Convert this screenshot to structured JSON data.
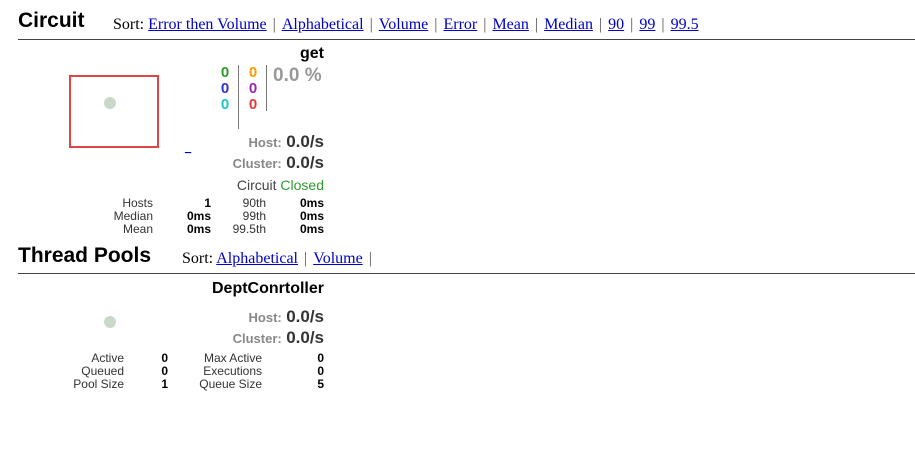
{
  "colors": {
    "link": "#0000cc",
    "success": "#2e9a2e",
    "timeout": "#ff9900",
    "rejected": "#9c27b0",
    "failure": "#e53935",
    "short_circuited": "#3333cc",
    "bad_request": "#1ac9c9",
    "highlight_border": "#e04545"
  },
  "circuit": {
    "title": "Circuit",
    "sort_label": "Sort:",
    "sort_options": [
      "Error then Volume",
      "Alphabetical",
      "Volume",
      "Error",
      "Mean",
      "Median",
      "90",
      "99",
      "99.5"
    ],
    "card": {
      "name": "get",
      "counts": {
        "success": "0",
        "short_circuited": "0",
        "bad_request": "0",
        "timeout": "0",
        "rejected": "0",
        "failure": "0"
      },
      "error_pct": "0.0 %",
      "small_link": "_",
      "host_label": "Host:",
      "host_rate": "0.0/s",
      "cluster_label": "Cluster:",
      "cluster_rate": "0.0/s",
      "circuit_label": "Circuit",
      "circuit_status": "Closed",
      "stats": {
        "hosts_label": "Hosts",
        "hosts": "1",
        "median_label": "Median",
        "median": "0ms",
        "mean_label": "Mean",
        "mean": "0ms",
        "p90_label": "90th",
        "p90": "0ms",
        "p99_label": "99th",
        "p99": "0ms",
        "p995_label": "99.5th",
        "p995": "0ms"
      }
    }
  },
  "thread_pools": {
    "title": "Thread Pools",
    "sort_label": "Sort:",
    "sort_options": [
      "Alphabetical",
      "Volume"
    ],
    "card": {
      "name": "DeptConrtoller",
      "host_label": "Host:",
      "host_rate": "0.0/s",
      "cluster_label": "Cluster:",
      "cluster_rate": "0.0/s",
      "stats": {
        "active_label": "Active",
        "active": "0",
        "queued_label": "Queued",
        "queued": "0",
        "pool_size_label": "Pool Size",
        "pool_size": "1",
        "max_active_label": "Max Active",
        "max_active": "0",
        "executions_label": "Executions",
        "executions": "0",
        "queue_size_label": "Queue Size",
        "queue_size": "5"
      }
    }
  }
}
